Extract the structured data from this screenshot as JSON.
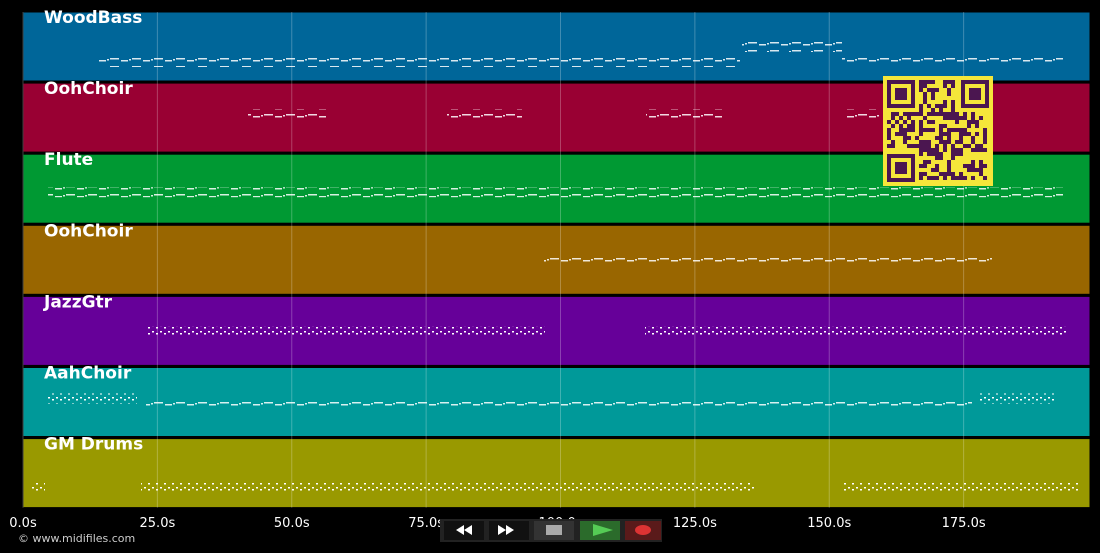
{
  "tracks": [
    {
      "name": "WoodBass",
      "color": "#006699"
    },
    {
      "name": "OohChoir",
      "color": "#990033"
    },
    {
      "name": "Flute",
      "color": "#009933"
    },
    {
      "name": "OohChoir",
      "color": "#996600"
    },
    {
      "name": "JazzGtr",
      "color": "#660099"
    },
    {
      "name": "AahChoir",
      "color": "#009999"
    },
    {
      "name": "GM Drums",
      "color": "#999900"
    }
  ],
  "time_axis": {
    "ticks": [
      {
        "value": 0,
        "label": "0.0s"
      },
      {
        "value": 25,
        "label": "25.0s"
      },
      {
        "value": 50,
        "label": "50.0s"
      },
      {
        "value": 75,
        "label": "75.0s"
      },
      {
        "value": 100,
        "label": "100.0s"
      },
      {
        "value": 125,
        "label": "125.0s"
      },
      {
        "value": 150,
        "label": "150.0s"
      },
      {
        "value": 175,
        "label": "175.0s"
      }
    ]
  },
  "footer": {
    "copyright": "© www.midifiles.com"
  }
}
